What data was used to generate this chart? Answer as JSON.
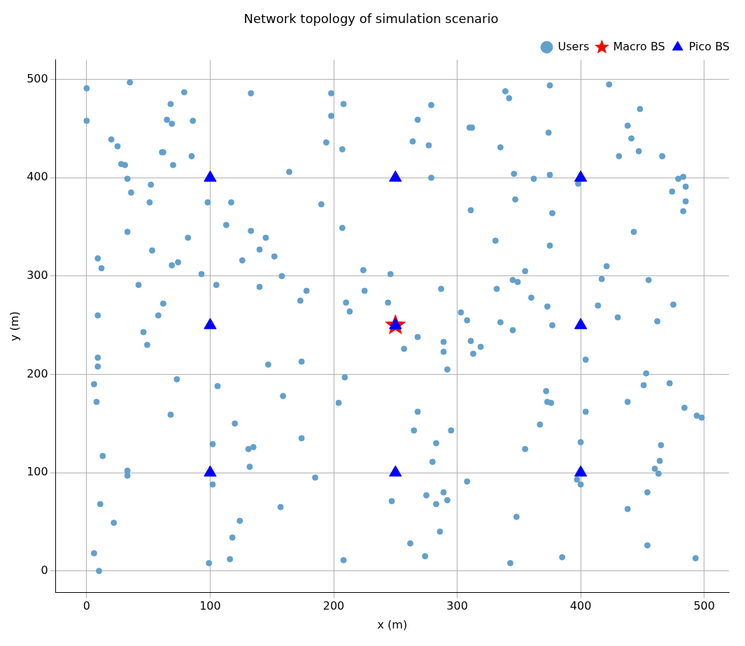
{
  "chart_data": {
    "type": "scatter",
    "title": "Network topology of simulation scenario",
    "xlabel": "x (m)",
    "ylabel": "y (m)",
    "xlim": [
      -25,
      520
    ],
    "ylim": [
      -22,
      520
    ],
    "xticks": [
      0,
      100,
      200,
      300,
      400,
      500
    ],
    "yticks": [
      0,
      100,
      200,
      300,
      400,
      500
    ],
    "grid": true,
    "legend": "top right",
    "series": [
      {
        "name": "Users",
        "color": "#62a0cc",
        "marker": "circle",
        "x": [
          0,
          0,
          35,
          79,
          68,
          69,
          65,
          86,
          20,
          25,
          28,
          31,
          61,
          62,
          85,
          70,
          33,
          52,
          36,
          51,
          33,
          82,
          9,
          12,
          53,
          74,
          69,
          42,
          62,
          58,
          9,
          46,
          49,
          9,
          9,
          6,
          8,
          73,
          68,
          13,
          33,
          33,
          11,
          22,
          6,
          10,
          133,
          164,
          117,
          98,
          113,
          133,
          145,
          140,
          152,
          126,
          93,
          105,
          140,
          158,
          178,
          173,
          147,
          174,
          106,
          159,
          120,
          102,
          131,
          135,
          132,
          174,
          185,
          102,
          124,
          157,
          118,
          116,
          99,
          198,
          208,
          198,
          194,
          207,
          190,
          207,
          279,
          268,
          264,
          277,
          279,
          224,
          246,
          210,
          213,
          225,
          244,
          287,
          257,
          268,
          289,
          289,
          292,
          209,
          204,
          268,
          265,
          295,
          283,
          280,
          247,
          275,
          289,
          292,
          283,
          286,
          262,
          274,
          208,
          339,
          342,
          375,
          374,
          310,
          312,
          335,
          346,
          375,
          362,
          398,
          347,
          311,
          377,
          331,
          375,
          355,
          345,
          349,
          332,
          360,
          373,
          303,
          308,
          335,
          345,
          377,
          311,
          319,
          313,
          372,
          373,
          376,
          367,
          355,
          400,
          308,
          397,
          400,
          348,
          385,
          343,
          423,
          448,
          438,
          441,
          447,
          431,
          466,
          479,
          483,
          485,
          474,
          485,
          483,
          443,
          421,
          417,
          455,
          414,
          430,
          462,
          475,
          404,
          453,
          451,
          472,
          438,
          484,
          494,
          498,
          404,
          465,
          464,
          460,
          463,
          454,
          438,
          454,
          493
        ],
        "values": [
          491,
          458,
          497,
          487,
          475,
          455,
          459,
          458,
          439,
          432,
          414,
          413,
          426,
          426,
          422,
          413,
          399,
          393,
          385,
          375,
          345,
          339,
          318,
          308,
          326,
          314,
          311,
          291,
          272,
          260,
          260,
          243,
          230,
          217,
          208,
          190,
          172,
          195,
          159,
          117,
          102,
          97,
          68,
          49,
          18,
          0,
          486,
          406,
          375,
          375,
          352,
          346,
          339,
          327,
          320,
          316,
          302,
          291,
          289,
          300,
          285,
          275,
          210,
          213,
          188,
          178,
          150,
          129,
          124,
          126,
          106,
          135,
          95,
          88,
          51,
          65,
          34,
          12,
          8,
          486,
          475,
          463,
          436,
          429,
          373,
          349,
          474,
          459,
          437,
          433,
          400,
          306,
          302,
          273,
          264,
          285,
          273,
          287,
          226,
          238,
          233,
          223,
          205,
          197,
          171,
          162,
          143,
          143,
          130,
          111,
          71,
          77,
          80,
          72,
          68,
          40,
          28,
          15,
          11,
          488,
          481,
          494,
          446,
          451,
          451,
          431,
          404,
          403,
          399,
          394,
          378,
          367,
          364,
          336,
          331,
          305,
          296,
          294,
          287,
          278,
          269,
          263,
          255,
          253,
          245,
          250,
          234,
          228,
          221,
          183,
          172,
          171,
          149,
          124,
          131,
          91,
          93,
          88,
          55,
          14,
          8,
          495,
          470,
          453,
          440,
          427,
          422,
          422,
          399,
          401,
          391,
          386,
          376,
          366,
          345,
          310,
          297,
          296,
          270,
          258,
          254,
          271,
          215,
          201,
          189,
          191,
          172,
          166,
          158,
          156,
          162,
          128,
          112,
          104,
          99,
          80,
          63,
          26,
          13
        ]
      },
      {
        "name": "Macro BS",
        "color": "#ff0000",
        "marker": "star",
        "x": [
          250
        ],
        "values": [
          250
        ]
      },
      {
        "name": "Pico BS",
        "color": "#0000ff",
        "marker": "triangle",
        "x": [
          100,
          250,
          400,
          100,
          250,
          400,
          100,
          250,
          400
        ],
        "values": [
          400,
          400,
          400,
          250,
          250,
          250,
          100,
          100,
          100
        ]
      }
    ]
  }
}
